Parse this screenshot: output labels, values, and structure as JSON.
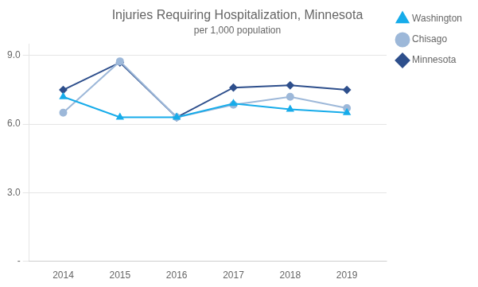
{
  "chart_data": {
    "type": "line",
    "title": "Injuries Requiring Hospitalization, Minnesota",
    "subtitle": "per 1,000 population",
    "x": [
      2014,
      2015,
      2016,
      2017,
      2018,
      2019
    ],
    "series": [
      {
        "name": "Washington",
        "color": "#17ACEA",
        "marker": "triangle",
        "values": [
          7.2,
          6.3,
          6.3,
          6.9,
          6.65,
          6.5
        ]
      },
      {
        "name": "Chisago",
        "color": "#9DB8D9",
        "marker": "circle",
        "values": [
          6.5,
          8.75,
          6.3,
          6.85,
          7.2,
          6.7
        ]
      },
      {
        "name": "Minnesota",
        "color": "#2E4F8C",
        "marker": "diamond",
        "values": [
          7.5,
          8.7,
          6.3,
          7.6,
          7.7,
          7.5
        ]
      }
    ],
    "xlim": [
      2013.4,
      2019.7
    ],
    "xticks": [
      2014,
      2015,
      2016,
      2017,
      2018,
      2019
    ],
    "ylim": [
      0,
      9.5
    ],
    "yticks": [
      {
        "value": 0,
        "label": "-"
      },
      {
        "value": 3,
        "label": "3.0"
      },
      {
        "value": 6,
        "label": "6.0"
      },
      {
        "value": 9,
        "label": "9.0"
      }
    ],
    "grid": "y",
    "legend": "right"
  }
}
